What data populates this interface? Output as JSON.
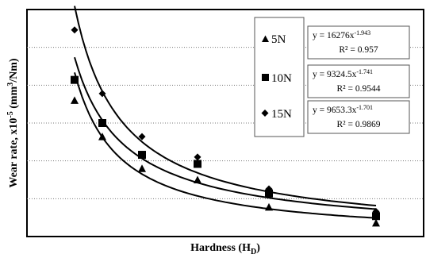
{
  "chart_data": {
    "type": "scatter",
    "xlabel": "Hardness (H",
    "xlabel_sub": "D",
    "xlabel_end": ")",
    "ylabel": "Wear rate, x10",
    "ylabel_exp": "-5",
    "ylabel_unit1": " (mm",
    "ylabel_unit_exp": "3",
    "ylabel_unit2": "/Nm)",
    "grid": "horizontal dotted",
    "legend_position": "top-right",
    "x_range": [
      0,
      100
    ],
    "y_range": [
      0,
      100
    ],
    "series": [
      {
        "name": "5N",
        "marker": "triangle",
        "x": [
          12,
          19,
          29,
          43,
          61,
          88
        ],
        "y": [
          60,
          44,
          30,
          25,
          13,
          6
        ],
        "fit": {
          "coef": 16276,
          "exp": 1.943
        },
        "eq_prefix": "y = 16276x",
        "eq_exp": "-1.943",
        "r2": "R² = 0.957"
      },
      {
        "name": "10N",
        "marker": "square",
        "x": [
          12,
          19,
          29,
          43,
          61,
          88
        ],
        "y": [
          69,
          50,
          36,
          32,
          19,
          9
        ],
        "fit": {
          "coef": 9324.5,
          "exp": 1.741
        },
        "eq_prefix": "y = 9324.5x",
        "eq_exp": "-1.741",
        "r2": "R² = 0.9544"
      },
      {
        "name": "15N",
        "marker": "diamond",
        "x": [
          12,
          19,
          29,
          43,
          61,
          88
        ],
        "y": [
          91,
          63,
          44,
          35,
          21,
          11
        ],
        "fit": {
          "coef": 9653.3,
          "exp": 1.701
        },
        "eq_prefix": "y = 9653.3x",
        "eq_exp": "-1.701",
        "r2": "R² = 0.9869"
      }
    ]
  }
}
